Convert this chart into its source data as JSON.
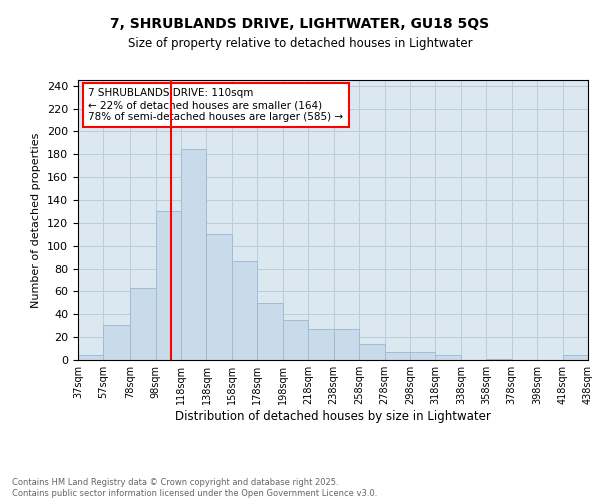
{
  "title": "7, SHRUBLANDS DRIVE, LIGHTWATER, GU18 5QS",
  "subtitle": "Size of property relative to detached houses in Lightwater",
  "xlabel": "Distribution of detached houses by size in Lightwater",
  "ylabel": "Number of detached properties",
  "bar_color": "#c9daea",
  "bar_edgecolor": "#a0bcd4",
  "grid_color": "#b8cedd",
  "background_color": "#dce8f0",
  "vline_x": 110,
  "vline_color": "red",
  "bins": [
    37,
    57,
    78,
    98,
    118,
    138,
    158,
    178,
    198,
    218,
    238,
    258,
    278,
    298,
    318,
    338,
    358,
    378,
    398,
    418,
    438
  ],
  "counts": [
    4,
    31,
    63,
    130,
    185,
    110,
    87,
    50,
    35,
    27,
    27,
    14,
    7,
    7,
    4,
    0,
    1,
    0,
    0,
    4
  ],
  "annotation_text": "7 SHRUBLANDS DRIVE: 110sqm\n← 22% of detached houses are smaller (164)\n78% of semi-detached houses are larger (585) →",
  "annotation_box_edgecolor": "red",
  "footnote": "Contains HM Land Registry data © Crown copyright and database right 2025.\nContains public sector information licensed under the Open Government Licence v3.0.",
  "ylim": [
    0,
    245
  ],
  "yticks": [
    0,
    20,
    40,
    60,
    80,
    100,
    120,
    140,
    160,
    180,
    200,
    220,
    240
  ],
  "tick_labels": [
    "37sqm",
    "57sqm",
    "78sqm",
    "98sqm",
    "118sqm",
    "138sqm",
    "158sqm",
    "178sqm",
    "198sqm",
    "218sqm",
    "238sqm",
    "258sqm",
    "278sqm",
    "298sqm",
    "318sqm",
    "338sqm",
    "358sqm",
    "378sqm",
    "398sqm",
    "418sqm",
    "438sqm"
  ]
}
